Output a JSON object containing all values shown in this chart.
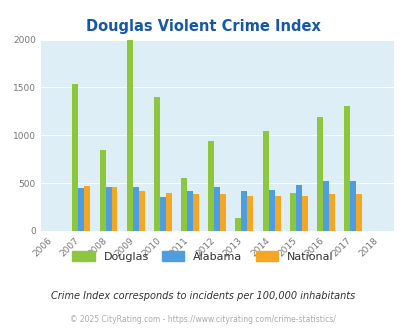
{
  "title": "Douglas Violent Crime Index",
  "all_years": [
    "2006",
    "2007",
    "2008",
    "2009",
    "2010",
    "2011",
    "2012",
    "2013",
    "2014",
    "2015",
    "2016",
    "2017",
    "2018"
  ],
  "data_years": [
    "2007",
    "2008",
    "2009",
    "2010",
    "2011",
    "2012",
    "2013",
    "2014",
    "2015",
    "2016",
    "2017"
  ],
  "douglas": [
    1540,
    850,
    2000,
    1400,
    550,
    940,
    140,
    1050,
    400,
    1190,
    1310
  ],
  "alabama": [
    450,
    455,
    455,
    360,
    420,
    460,
    420,
    430,
    480,
    520,
    520
  ],
  "national": [
    470,
    455,
    420,
    400,
    385,
    385,
    370,
    365,
    370,
    385,
    385
  ],
  "douglas_color": "#8dc63f",
  "alabama_color": "#4d9de0",
  "national_color": "#f5a623",
  "bg_color": "#ddeef6",
  "title_color": "#1558a7",
  "subtitle_color": "#333333",
  "footer_color": "#aaaaaa",
  "subtitle": "Crime Index corresponds to incidents per 100,000 inhabitants",
  "footer": "© 2025 CityRating.com - https://www.cityrating.com/crime-statistics/",
  "ylim": [
    0,
    2000
  ],
  "yticks": [
    0,
    500,
    1000,
    1500,
    2000
  ],
  "bar_width": 0.22
}
